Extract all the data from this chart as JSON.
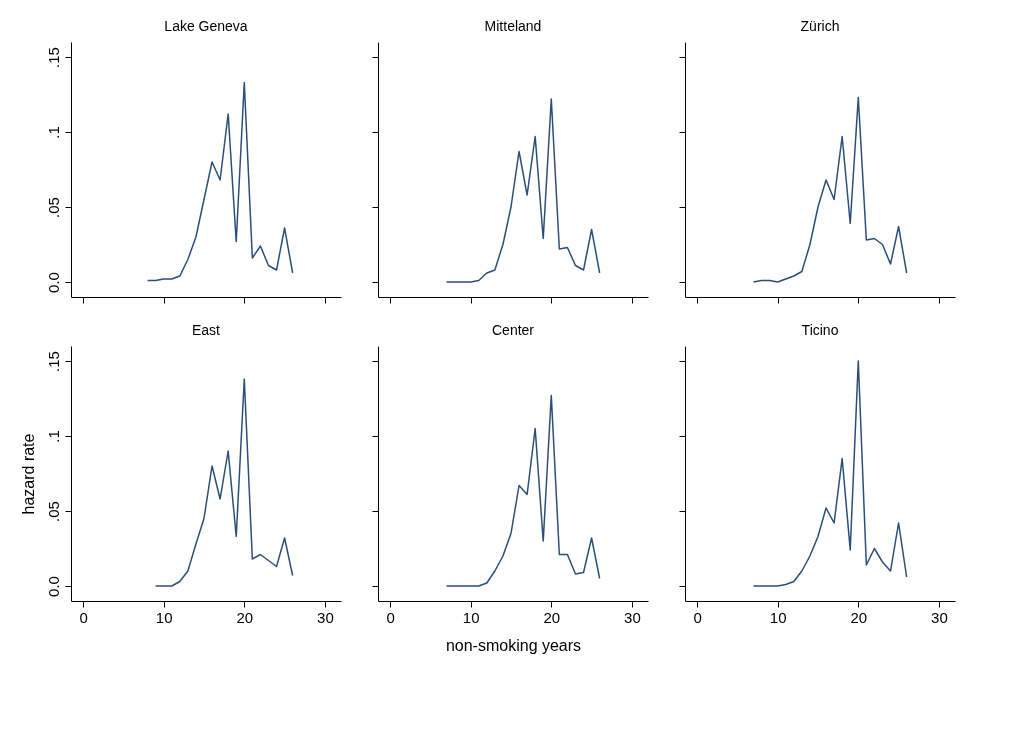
{
  "chart_data": [
    {
      "type": "line",
      "title": "Lake Geneva",
      "x": [
        8,
        9,
        10,
        11,
        12,
        13,
        14,
        15,
        16,
        17,
        18,
        19,
        20,
        21,
        22,
        23,
        24,
        25,
        26
      ],
      "series": [
        {
          "color": "#2b4f78",
          "values": [
            0.001,
            0.001,
            0.002,
            0.002,
            0.004,
            0.015,
            0.03,
            0.055,
            0.08,
            0.068,
            0.112,
            0.027,
            0.133,
            0.016,
            0.024,
            0.011,
            0.008,
            0.036,
            0.006
          ]
        }
      ],
      "xlim": [
        -1.5,
        32
      ],
      "ylim": [
        -0.01,
        0.16
      ],
      "xticks": [
        {
          "value": 0,
          "label": null
        },
        {
          "value": 10,
          "label": null
        },
        {
          "value": 20,
          "label": null
        },
        {
          "value": 30,
          "label": null
        }
      ],
      "yticks": [
        {
          "value": 0,
          "label": "0.0"
        },
        {
          "value": 0.05,
          "label": ".05"
        },
        {
          "value": 0.1,
          "label": ".1"
        },
        {
          "value": 0.15,
          "label": ".15"
        }
      ],
      "tick_labels": "y",
      "grid": false,
      "legend": false
    },
    {
      "type": "line",
      "title": "Mitteland",
      "x": [
        7,
        8,
        9,
        10,
        11,
        12,
        13,
        14,
        15,
        16,
        17,
        18,
        19,
        20,
        21,
        22,
        23,
        24,
        25,
        26
      ],
      "series": [
        {
          "color": "#2b4f78",
          "values": [
            0,
            0,
            0,
            0,
            0.001,
            0.006,
            0.008,
            0.025,
            0.05,
            0.087,
            0.058,
            0.097,
            0.029,
            0.122,
            0.022,
            0.023,
            0.011,
            0.008,
            0.035,
            0.006
          ]
        }
      ],
      "xlim": [
        -1.5,
        32
      ],
      "ylim": [
        -0.01,
        0.16
      ],
      "xticks": [
        {
          "value": 0,
          "label": null
        },
        {
          "value": 10,
          "label": null
        },
        {
          "value": 20,
          "label": null
        },
        {
          "value": 30,
          "label": null
        }
      ],
      "yticks": [
        {
          "value": 0,
          "label": null
        },
        {
          "value": 0.05,
          "label": null
        },
        {
          "value": 0.1,
          "label": null
        },
        {
          "value": 0.15,
          "label": null
        }
      ],
      "tick_labels": false,
      "grid": false,
      "legend": false
    },
    {
      "type": "line",
      "title": "Zürich",
      "x": [
        7,
        8,
        9,
        10,
        11,
        12,
        13,
        14,
        15,
        16,
        17,
        18,
        19,
        20,
        21,
        22,
        23,
        24,
        25,
        26
      ],
      "series": [
        {
          "color": "#2b4f78",
          "values": [
            0,
            0.001,
            0.001,
            0,
            0.002,
            0.004,
            0.007,
            0.025,
            0.05,
            0.068,
            0.055,
            0.097,
            0.039,
            0.123,
            0.028,
            0.029,
            0.025,
            0.012,
            0.037,
            0.006
          ]
        }
      ],
      "xlim": [
        -1.5,
        32
      ],
      "ylim": [
        -0.01,
        0.16
      ],
      "xticks": [
        {
          "value": 0,
          "label": null
        },
        {
          "value": 10,
          "label": null
        },
        {
          "value": 20,
          "label": null
        },
        {
          "value": 30,
          "label": null
        }
      ],
      "yticks": [
        {
          "value": 0,
          "label": null
        },
        {
          "value": 0.05,
          "label": null
        },
        {
          "value": 0.1,
          "label": null
        },
        {
          "value": 0.15,
          "label": null
        }
      ],
      "tick_labels": false,
      "grid": false,
      "legend": false
    },
    {
      "type": "line",
      "title": "East",
      "ylabel": "hazard rate",
      "x": [
        9,
        10,
        11,
        12,
        13,
        14,
        15,
        16,
        17,
        18,
        19,
        20,
        21,
        22,
        23,
        24,
        25,
        26
      ],
      "series": [
        {
          "color": "#2b4f78",
          "values": [
            0,
            0,
            0,
            0.003,
            0.01,
            0.028,
            0.045,
            0.08,
            0.058,
            0.09,
            0.033,
            0.138,
            0.018,
            0.021,
            0.017,
            0.013,
            0.032,
            0.007
          ]
        }
      ],
      "xlim": [
        -1.5,
        32
      ],
      "ylim": [
        -0.01,
        0.16
      ],
      "xticks": [
        0,
        10,
        20,
        30
      ],
      "yticks": [
        {
          "value": 0,
          "label": "0.0"
        },
        {
          "value": 0.05,
          "label": ".05"
        },
        {
          "value": 0.1,
          "label": ".1"
        },
        {
          "value": 0.15,
          "label": ".15"
        }
      ],
      "grid": false,
      "legend": false
    },
    {
      "type": "line",
      "title": "Center",
      "xlabel": "non-smoking years",
      "x": [
        7,
        8,
        9,
        10,
        11,
        12,
        13,
        14,
        15,
        16,
        17,
        18,
        19,
        20,
        21,
        22,
        23,
        24,
        25,
        26
      ],
      "series": [
        {
          "color": "#2b4f78",
          "values": [
            0,
            0,
            0,
            0,
            0,
            0.002,
            0.01,
            0.02,
            0.035,
            0.067,
            0.061,
            0.105,
            0.03,
            0.127,
            0.021,
            0.021,
            0.008,
            0.009,
            0.032,
            0.005
          ]
        }
      ],
      "xlim": [
        -1.5,
        32
      ],
      "ylim": [
        -0.01,
        0.16
      ],
      "xticks": [
        0,
        10,
        20,
        30
      ],
      "yticks": [
        {
          "value": 0,
          "label": null
        },
        {
          "value": 0.05,
          "label": null
        },
        {
          "value": 0.1,
          "label": null
        },
        {
          "value": 0.15,
          "label": null
        }
      ],
      "tick_labels": "x",
      "grid": false,
      "legend": false
    },
    {
      "type": "line",
      "title": "Ticino",
      "x": [
        7,
        8,
        9,
        10,
        11,
        12,
        13,
        14,
        15,
        16,
        17,
        18,
        19,
        20,
        21,
        22,
        23,
        24,
        25,
        26
      ],
      "series": [
        {
          "color": "#2b4f78",
          "values": [
            0,
            0,
            0,
            0,
            0.001,
            0.003,
            0.01,
            0.02,
            0.033,
            0.052,
            0.042,
            0.085,
            0.024,
            0.15,
            0.014,
            0.025,
            0.016,
            0.01,
            0.042,
            0.006
          ]
        }
      ],
      "xlim": [
        -1.5,
        32
      ],
      "ylim": [
        -0.01,
        0.16
      ],
      "xticks": [
        0,
        10,
        20,
        30
      ],
      "yticks": [
        {
          "value": 0,
          "label": null
        },
        {
          "value": 0.05,
          "label": null
        },
        {
          "value": 0.1,
          "label": null
        },
        {
          "value": 0.15,
          "label": null
        }
      ],
      "tick_labels": "x",
      "grid": false,
      "legend": false
    }
  ]
}
